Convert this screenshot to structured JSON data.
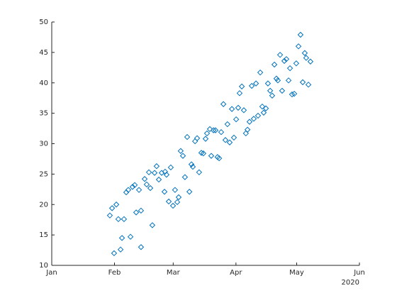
{
  "chart_data": {
    "type": "scatter",
    "color": "#0072bd",
    "marker": "diamond",
    "x": [
      28.7,
      29.8,
      31.9,
      30.8,
      32.9,
      34.0,
      34.7,
      35.7,
      36.8,
      37.8,
      38.9,
      39.9,
      41.0,
      41.7,
      43.1,
      44.1,
      44.1,
      45.9,
      46.9,
      48.0,
      48.7,
      49.7,
      50.8,
      51.8,
      52.9,
      54.3,
      55.7,
      56.0,
      56.7,
      57.8,
      58.8,
      59.9,
      60.9,
      62.0,
      62.7,
      63.7,
      64.8,
      65.8,
      66.9,
      68.0,
      69.0,
      69.7,
      70.8,
      71.8,
      72.8,
      73.9,
      74.9,
      76.0,
      76.7,
      78.1,
      78.8,
      79.9,
      80.9,
      81.9,
      82.7,
      83.7,
      84.8,
      85.8,
      86.8,
      87.9,
      89.0,
      90.0,
      91.1,
      92.1,
      92.8,
      93.9,
      94.9,
      95.9,
      96.7,
      97.7,
      98.8,
      99.8,
      100.9,
      101.9,
      103.0,
      104.0,
      104.7,
      105.8,
      106.8,
      107.9,
      108.9,
      110.0,
      111.0,
      111.7,
      112.8,
      113.8,
      114.9,
      115.9,
      117.0,
      117.7,
      118.7,
      119.8,
      120.8,
      121.9,
      122.9,
      124.0,
      125.0,
      125.7,
      126.8,
      127.8
    ],
    "y": [
      18.2,
      19.4,
      20.0,
      12.0,
      17.6,
      12.6,
      14.5,
      17.6,
      22.0,
      22.4,
      14.7,
      22.9,
      23.2,
      18.7,
      22.4,
      19.0,
      13.0,
      24.2,
      23.3,
      25.3,
      22.7,
      16.6,
      25.2,
      26.3,
      24.1,
      25.2,
      22.1,
      25.4,
      24.9,
      20.5,
      26.1,
      19.8,
      22.4,
      20.4,
      21.2,
      28.8,
      28.0,
      24.5,
      31.1,
      22.1,
      26.6,
      26.2,
      30.4,
      30.9,
      25.3,
      28.5,
      28.4,
      30.8,
      31.7,
      32.4,
      28.0,
      32.2,
      32.2,
      27.8,
      27.6,
      31.9,
      36.5,
      30.6,
      33.2,
      30.2,
      35.7,
      31.0,
      34.0,
      35.9,
      38.3,
      39.4,
      35.5,
      31.7,
      32.3,
      33.6,
      39.5,
      34.1,
      39.9,
      34.6,
      41.7,
      36.1,
      35.1,
      35.8,
      39.9,
      38.7,
      37.9,
      43.0,
      40.7,
      40.4,
      44.6,
      38.7,
      43.6,
      43.9,
      40.4,
      42.4,
      38.1,
      38.2,
      43.2,
      46.0,
      47.9,
      40.1,
      44.9,
      44.1,
      39.7,
      43.5
    ],
    "xlim": [
      0,
      152
    ],
    "xticks": [
      {
        "value": 0,
        "label": "Jan"
      },
      {
        "value": 31,
        "label": "Feb"
      },
      {
        "value": 60,
        "label": "Mar"
      },
      {
        "value": 91,
        "label": "Apr"
      },
      {
        "value": 121,
        "label": "May"
      },
      {
        "value": 152,
        "label": "Jun"
      }
    ],
    "x_secondary_label": "2020",
    "ylim": [
      10,
      50
    ],
    "yticks": [
      10,
      15,
      20,
      25,
      30,
      35,
      40,
      45,
      50
    ]
  }
}
